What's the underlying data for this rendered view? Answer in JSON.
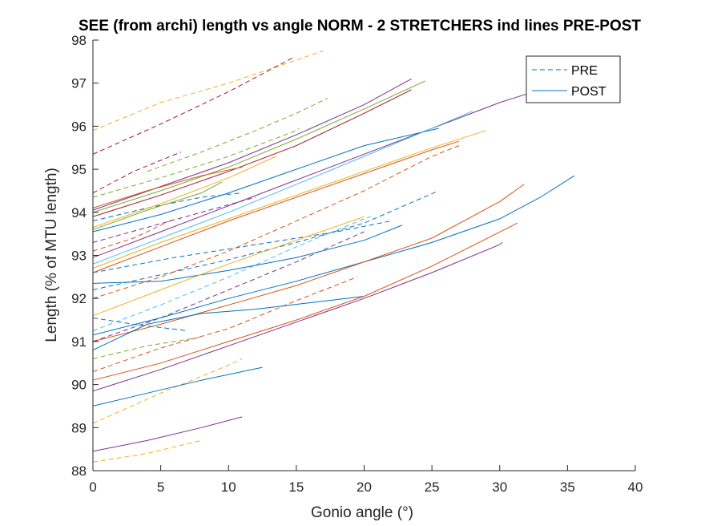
{
  "chart_data": {
    "type": "line",
    "title": "SEE (from archi) length vs angle NORM - 2 STRETCHERS ind lines PRE-POST",
    "xlabel": "Gonio angle (°)",
    "ylabel": "Length (% of MTU length)",
    "xlim": [
      0,
      40
    ],
    "ylim": [
      88,
      98
    ],
    "xticks": [
      0,
      5,
      10,
      15,
      20,
      25,
      30,
      35,
      40
    ],
    "yticks": [
      88,
      89,
      90,
      91,
      92,
      93,
      94,
      95,
      96,
      97,
      98
    ],
    "grid": false,
    "legend_position": "top-right",
    "legend": [
      {
        "label": "PRE",
        "style": "dashed",
        "color": "#0072BD"
      },
      {
        "label": "POST",
        "style": "solid",
        "color": "#0072BD"
      }
    ],
    "series": [
      {
        "group": "PRE",
        "color": "#EDB120",
        "x": [
          0,
          5,
          10,
          17
        ],
        "y": [
          95.9,
          96.55,
          97.0,
          97.75
        ]
      },
      {
        "group": "PRE",
        "color": "#A2142F",
        "x": [
          0,
          5,
          10,
          14.8
        ],
        "y": [
          95.35,
          96.05,
          96.8,
          97.6
        ]
      },
      {
        "group": "PRE",
        "color": "#A2142F",
        "x": [
          0,
          3,
          6.5
        ],
        "y": [
          94.45,
          94.95,
          95.4
        ]
      },
      {
        "group": "PRE",
        "color": "#77AC30",
        "x": [
          0,
          5,
          10,
          15,
          15.2
        ],
        "y": [
          94.35,
          94.8,
          95.3,
          95.9,
          95.95
        ]
      },
      {
        "group": "PRE",
        "color": "#77AC30",
        "x": [
          4,
          8,
          12,
          15,
          17.3
        ],
        "y": [
          94.95,
          95.4,
          95.9,
          96.3,
          96.65
        ]
      },
      {
        "group": "PRE",
        "color": "#0072BD",
        "x": [
          0,
          4,
          8,
          11
        ],
        "y": [
          93.8,
          94.1,
          94.35,
          94.45
        ]
      },
      {
        "group": "PRE",
        "color": "#D95319",
        "x": [
          0,
          3,
          6
        ],
        "y": [
          93.1,
          93.4,
          93.85
        ]
      },
      {
        "group": "PRE",
        "color": "#7E2F8E",
        "x": [
          0,
          4,
          8,
          12
        ],
        "y": [
          93.3,
          93.65,
          94.0,
          94.35
        ]
      },
      {
        "group": "PRE",
        "color": "#0072BD",
        "x": [
          0,
          6,
          12,
          18,
          22
        ],
        "y": [
          92.6,
          92.95,
          93.25,
          93.55,
          93.8
        ]
      },
      {
        "group": "PRE",
        "color": "#0072BD",
        "x": [
          0,
          5,
          10,
          15,
          20,
          25.5
        ],
        "y": [
          92.2,
          92.55,
          92.9,
          93.3,
          93.75,
          94.5
        ]
      },
      {
        "group": "PRE",
        "color": "#D95319",
        "x": [
          0,
          5,
          10,
          15,
          20,
          25,
          27
        ],
        "y": [
          92.0,
          92.5,
          93.1,
          93.8,
          94.5,
          95.3,
          95.55
        ]
      },
      {
        "group": "PRE",
        "color": "#4DBEEE",
        "x": [
          0,
          5,
          10,
          15,
          20,
          20.5
        ],
        "y": [
          91.25,
          91.85,
          92.5,
          93.2,
          93.85,
          93.9
        ]
      },
      {
        "group": "PRE",
        "color": "#7E2F8E",
        "x": [
          0,
          5,
          10,
          15,
          20
        ],
        "y": [
          91.0,
          91.55,
          92.2,
          92.85,
          93.55
        ]
      },
      {
        "group": "PRE",
        "color": "#0072BD",
        "x": [
          0,
          3,
          7
        ],
        "y": [
          91.55,
          91.4,
          91.25
        ]
      },
      {
        "group": "PRE",
        "color": "#D95319",
        "x": [
          0,
          5,
          10,
          15,
          19.5
        ],
        "y": [
          90.3,
          90.85,
          91.3,
          91.95,
          92.5
        ]
      },
      {
        "group": "PRE",
        "color": "#77AC30",
        "x": [
          0,
          4,
          8
        ],
        "y": [
          90.6,
          90.9,
          91.1
        ]
      },
      {
        "group": "PRE",
        "color": "#EDB120",
        "x": [
          0,
          5,
          10,
          11
        ],
        "y": [
          89.1,
          89.8,
          90.45,
          90.6
        ]
      },
      {
        "group": "PRE",
        "color": "#EDB120",
        "x": [
          0,
          4,
          8
        ],
        "y": [
          88.2,
          88.4,
          88.7
        ]
      },
      {
        "group": "POST",
        "color": "#7E2F8E",
        "x": [
          0,
          5,
          10,
          15,
          20,
          23.5
        ],
        "y": [
          94.05,
          94.6,
          95.15,
          95.8,
          96.5,
          97.1
        ]
      },
      {
        "group": "POST",
        "color": "#77AC30",
        "x": [
          0,
          5,
          10,
          15,
          20,
          24.5
        ],
        "y": [
          94.0,
          94.5,
          95.05,
          95.7,
          96.4,
          97.05
        ]
      },
      {
        "group": "POST",
        "color": "#A2142F",
        "x": [
          0,
          5,
          10,
          15,
          20,
          23.5
        ],
        "y": [
          93.9,
          94.4,
          94.95,
          95.55,
          96.3,
          96.85
        ]
      },
      {
        "group": "POST",
        "color": "#D95319",
        "x": [
          0,
          4,
          8,
          11
        ],
        "y": [
          94.1,
          94.5,
          94.85,
          95.05
        ]
      },
      {
        "group": "POST",
        "color": "#EDB120",
        "x": [
          0,
          5,
          10,
          13.5
        ],
        "y": [
          93.65,
          94.2,
          94.8,
          95.3
        ]
      },
      {
        "group": "POST",
        "color": "#77AC30",
        "x": [
          0,
          4,
          8,
          9.5
        ],
        "y": [
          93.6,
          94.05,
          94.45,
          94.7
        ]
      },
      {
        "group": "POST",
        "color": "#0072BD",
        "x": [
          0,
          5,
          10,
          15,
          20,
          25.5
        ],
        "y": [
          93.55,
          93.95,
          94.45,
          95.0,
          95.55,
          95.95
        ]
      },
      {
        "group": "POST",
        "color": "#7E2F8E",
        "x": [
          0,
          5,
          10,
          15,
          20,
          25,
          30,
          37
        ],
        "y": [
          92.95,
          93.55,
          94.15,
          94.75,
          95.35,
          95.95,
          96.55,
          97.25
        ]
      },
      {
        "group": "POST",
        "color": "#4DBEEE",
        "x": [
          0,
          5,
          10,
          15,
          20,
          25,
          28
        ],
        "y": [
          92.8,
          93.4,
          94.0,
          94.65,
          95.3,
          95.95,
          96.35
        ]
      },
      {
        "group": "POST",
        "color": "#EDB120",
        "x": [
          0,
          5,
          10,
          15,
          20,
          25,
          29
        ],
        "y": [
          92.7,
          93.3,
          93.85,
          94.4,
          94.95,
          95.5,
          95.9
        ]
      },
      {
        "group": "POST",
        "color": "#D95319",
        "x": [
          0,
          5,
          10,
          15,
          20,
          25,
          27
        ],
        "y": [
          92.6,
          93.2,
          93.8,
          94.35,
          94.9,
          95.45,
          95.65
        ]
      },
      {
        "group": "POST",
        "color": "#0072BD",
        "x": [
          0,
          5,
          10,
          15,
          20,
          22.8
        ],
        "y": [
          92.35,
          92.4,
          92.65,
          92.95,
          93.35,
          93.7
        ]
      },
      {
        "group": "POST",
        "color": "#EDB120",
        "x": [
          0,
          5,
          10,
          15,
          20
        ],
        "y": [
          91.6,
          92.2,
          92.8,
          93.35,
          93.9
        ]
      },
      {
        "group": "POST",
        "color": "#0072BD",
        "x": [
          0,
          5,
          10,
          15,
          20,
          25,
          30,
          33,
          35.5
        ],
        "y": [
          91.15,
          91.55,
          92.0,
          92.4,
          92.85,
          93.3,
          93.85,
          94.35,
          94.85
        ]
      },
      {
        "group": "POST",
        "color": "#D95319",
        "x": [
          0,
          5,
          10,
          15,
          20,
          25,
          30,
          31.8
        ],
        "y": [
          91.0,
          91.4,
          91.85,
          92.3,
          92.85,
          93.4,
          94.25,
          94.65
        ]
      },
      {
        "group": "POST",
        "color": "#0072BD",
        "x": [
          0,
          4,
          8,
          12,
          16,
          20
        ],
        "y": [
          90.8,
          91.4,
          91.65,
          91.75,
          91.9,
          92.05
        ]
      },
      {
        "group": "POST",
        "color": "#D95319",
        "x": [
          0,
          5,
          10,
          15,
          20,
          25,
          31.3
        ],
        "y": [
          90.1,
          90.5,
          91.0,
          91.5,
          92.05,
          92.75,
          93.75
        ]
      },
      {
        "group": "POST",
        "color": "#7E2F8E",
        "x": [
          0,
          5,
          10,
          15,
          20,
          25,
          30,
          30.2
        ],
        "y": [
          89.85,
          90.35,
          90.9,
          91.45,
          92.0,
          92.6,
          93.25,
          93.3
        ]
      },
      {
        "group": "POST",
        "color": "#0072BD",
        "x": [
          0,
          4,
          8,
          12.5
        ],
        "y": [
          89.5,
          89.8,
          90.1,
          90.4
        ]
      },
      {
        "group": "POST",
        "color": "#7E2F8E",
        "x": [
          0,
          4,
          8,
          11
        ],
        "y": [
          88.45,
          88.7,
          89.0,
          89.25
        ]
      }
    ]
  }
}
